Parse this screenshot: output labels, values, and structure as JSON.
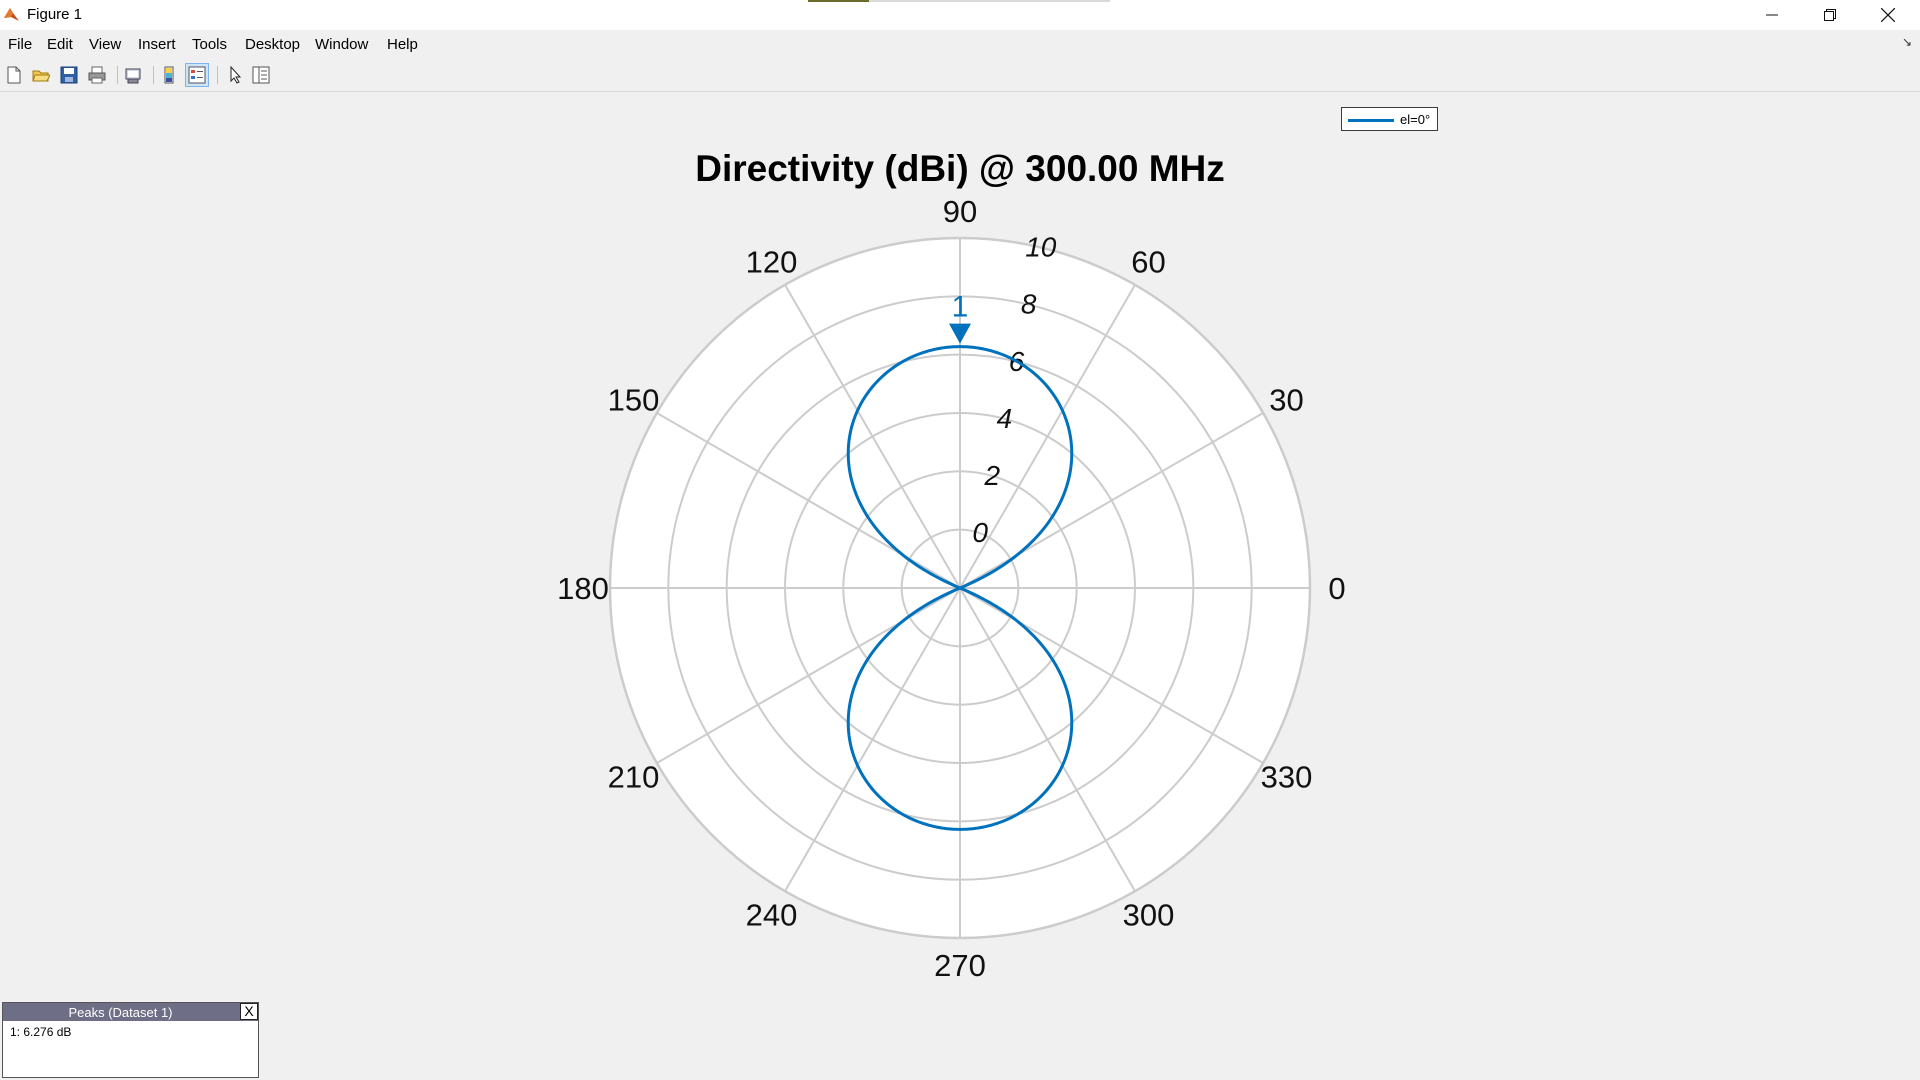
{
  "window": {
    "title": "Figure 1",
    "icon": "matlab-icon"
  },
  "menu": [
    "File",
    "Edit",
    "View",
    "Insert",
    "Tools",
    "Desktop",
    "Window",
    "Help"
  ],
  "toolbar": {
    "tools": [
      "new-figure-icon",
      "open-file-icon",
      "save-icon",
      "print-icon",
      "print-preview-icon",
      "colorbar-icon",
      "legend-icon",
      "pointer-icon",
      "property-inspector-icon"
    ]
  },
  "legend": {
    "entry": "el=0°",
    "color": "#0072bd"
  },
  "peaks_panel": {
    "title": "Peaks (Dataset 1)",
    "close_label": "X",
    "rows": [
      "1: 6.276 dB"
    ]
  },
  "colors": {
    "series": "#0072bd",
    "grid": "#cccccc",
    "panel_header": "#6e6e86"
  },
  "chart_data": {
    "type": "polar",
    "title": "Directivity (dBi) @ 300.00 MHz",
    "angle_ticks": [
      0,
      30,
      60,
      90,
      120,
      150,
      180,
      210,
      240,
      270,
      300,
      330
    ],
    "radial_ticks": [
      0,
      2,
      4,
      6,
      8,
      10
    ],
    "radial_range_db": [
      -2,
      10
    ],
    "series": [
      {
        "name": "el=0°",
        "pattern": "dipole",
        "peak_db": 6.276,
        "peak_angles_deg": [
          90,
          270
        ]
      }
    ],
    "peak_marker": {
      "label": "1",
      "angle_deg": 90,
      "value_db": 6.276
    }
  }
}
